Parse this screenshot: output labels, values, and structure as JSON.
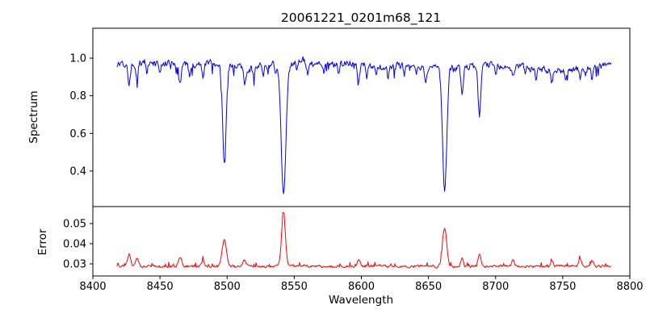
{
  "figure": {
    "background": "#ffffff"
  },
  "chart_data": {
    "type": "line",
    "title": "20061221_0201m68_121",
    "xlabel": "Wavelength",
    "legend": "none",
    "grid": false,
    "x_axis": {
      "range": [
        8400,
        8800
      ],
      "ticks": [
        8400,
        8450,
        8500,
        8550,
        8600,
        8650,
        8700,
        8750,
        8800
      ],
      "tick_labels": [
        "8400",
        "8450",
        "8500",
        "8550",
        "8600",
        "8650",
        "8700",
        "8750",
        "8800"
      ]
    },
    "data_x": {
      "start": 8418,
      "end": 8786,
      "step": 0.5
    },
    "seed": 1221,
    "subplots": [
      {
        "name": "spectrum",
        "ylabel": "Spectrum",
        "color": "#0000ff",
        "ylim": [
          0.211,
          1.159
        ],
        "yticks": [
          0.4,
          0.6,
          0.8,
          1.0
        ],
        "ytick_labels": [
          "0.4",
          "0.6",
          "0.8",
          "1.0"
        ],
        "continuum": 0.963,
        "noise_amplitude": 0.028,
        "drift_amplitude": 0.004,
        "dip_spike_prob": 0.05,
        "dip_spike_max": 0.05,
        "major_absorption_lines": [
          {
            "center": 8498,
            "depth": 0.54,
            "sigma": 1.3
          },
          {
            "center": 8542,
            "depth": 0.7,
            "sigma": 1.7
          },
          {
            "center": 8662,
            "depth": 0.66,
            "sigma": 1.6
          }
        ],
        "minor_absorption_lines": [
          {
            "center": 8427,
            "depth": 0.13,
            "sigma": 0.8
          },
          {
            "center": 8433,
            "depth": 0.1,
            "sigma": 0.7
          },
          {
            "center": 8440,
            "depth": 0.05,
            "sigma": 0.6
          },
          {
            "center": 8450,
            "depth": 0.06,
            "sigma": 0.6
          },
          {
            "center": 8465,
            "depth": 0.09,
            "sigma": 0.8
          },
          {
            "center": 8472,
            "depth": 0.05,
            "sigma": 0.6
          },
          {
            "center": 8482,
            "depth": 0.06,
            "sigma": 0.7
          },
          {
            "center": 8513,
            "depth": 0.08,
            "sigma": 0.8
          },
          {
            "center": 8520,
            "depth": 0.06,
            "sigma": 0.7
          },
          {
            "center": 8527,
            "depth": 0.06,
            "sigma": 0.7
          },
          {
            "center": 8536,
            "depth": 0.05,
            "sigma": 0.6
          },
          {
            "center": 8552,
            "depth": 0.05,
            "sigma": 0.6
          },
          {
            "center": 8560,
            "depth": 0.06,
            "sigma": 0.7
          },
          {
            "center": 8572,
            "depth": 0.05,
            "sigma": 0.6
          },
          {
            "center": 8583,
            "depth": 0.06,
            "sigma": 0.7
          },
          {
            "center": 8598,
            "depth": 0.08,
            "sigma": 0.8
          },
          {
            "center": 8604,
            "depth": 0.05,
            "sigma": 0.6
          },
          {
            "center": 8611,
            "depth": 0.05,
            "sigma": 0.6
          },
          {
            "center": 8620,
            "depth": 0.06,
            "sigma": 0.7
          },
          {
            "center": 8632,
            "depth": 0.05,
            "sigma": 0.6
          },
          {
            "center": 8641,
            "depth": 0.05,
            "sigma": 0.6
          },
          {
            "center": 8648,
            "depth": 0.06,
            "sigma": 0.7
          },
          {
            "center": 8675,
            "depth": 0.14,
            "sigma": 0.9
          },
          {
            "center": 8688,
            "depth": 0.27,
            "sigma": 1.0
          },
          {
            "center": 8700,
            "depth": 0.05,
            "sigma": 0.6
          },
          {
            "center": 8713,
            "depth": 0.06,
            "sigma": 0.7
          },
          {
            "center": 8722,
            "depth": 0.05,
            "sigma": 0.6
          },
          {
            "center": 8730,
            "depth": 0.06,
            "sigma": 0.7
          },
          {
            "center": 8742,
            "depth": 0.06,
            "sigma": 0.7
          },
          {
            "center": 8752,
            "depth": 0.05,
            "sigma": 0.6
          },
          {
            "center": 8763,
            "depth": 0.06,
            "sigma": 0.7
          },
          {
            "center": 8772,
            "depth": 0.05,
            "sigma": 0.6
          }
        ]
      },
      {
        "name": "error",
        "ylabel": "Error",
        "color": "#ff0000",
        "ylim": [
          0.024,
          0.0584
        ],
        "yticks": [
          0.03,
          0.04,
          0.05
        ],
        "ytick_labels": [
          "0.03",
          "0.04",
          "0.05"
        ],
        "baseline": 0.0288,
        "noise_amplitude": 0.001,
        "spike_prob": 0.07,
        "spike_max": 0.002,
        "peaks": [
          {
            "center": 8498,
            "height": 0.013,
            "sigma": 1.6
          },
          {
            "center": 8542,
            "height": 0.0265,
            "sigma": 1.4
          },
          {
            "center": 8662,
            "height": 0.0195,
            "sigma": 1.5
          },
          {
            "center": 8427,
            "height": 0.006,
            "sigma": 1.2
          },
          {
            "center": 8433,
            "height": 0.004,
            "sigma": 1.0
          },
          {
            "center": 8465,
            "height": 0.0045,
            "sigma": 1.2
          },
          {
            "center": 8482,
            "height": 0.003,
            "sigma": 1.0
          },
          {
            "center": 8513,
            "height": 0.003,
            "sigma": 1.0
          },
          {
            "center": 8598,
            "height": 0.003,
            "sigma": 1.0
          },
          {
            "center": 8675,
            "height": 0.004,
            "sigma": 1.0
          },
          {
            "center": 8688,
            "height": 0.0065,
            "sigma": 1.1
          },
          {
            "center": 8713,
            "height": 0.003,
            "sigma": 1.0
          },
          {
            "center": 8742,
            "height": 0.003,
            "sigma": 1.0
          },
          {
            "center": 8763,
            "height": 0.0035,
            "sigma": 1.0
          },
          {
            "center": 8772,
            "height": 0.003,
            "sigma": 1.0
          }
        ]
      }
    ]
  }
}
